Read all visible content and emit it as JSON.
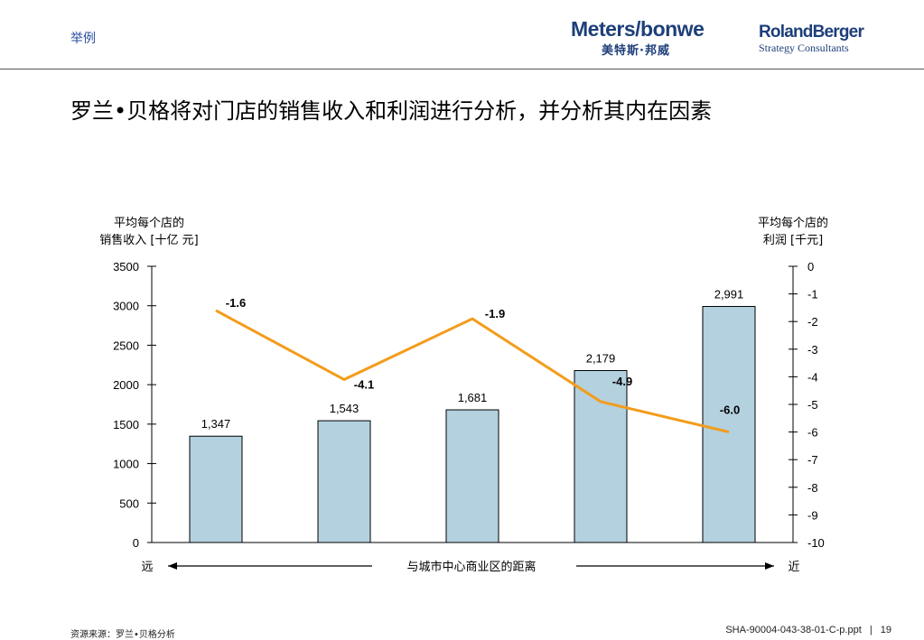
{
  "header": {
    "tag": "举例",
    "logo_meters_word": "Meters/bonwe",
    "logo_meters_sub": "美特斯·邦威",
    "logo_rb_word": "RolandBerger",
    "logo_rb_sub": "Strategy Consultants"
  },
  "title": "罗兰•贝格将对门店的销售收入和利润进行分析，并分析其内在因素",
  "chart_data": {
    "type": "bar",
    "categories": [
      "",
      "",
      "",
      "",
      ""
    ],
    "left_axis_label_line1": "平均每个店的",
    "left_axis_label_line2": "销售收入 [十亿 元]",
    "right_axis_label_line1": "平均每个店的",
    "right_axis_label_line2": "利润 [千元]",
    "ylim_left": [
      0,
      3500
    ],
    "yticks_left": [
      "0",
      "500",
      "1000",
      "1500",
      "2000",
      "2500",
      "3000",
      "3500"
    ],
    "ylim_right": [
      -10,
      0
    ],
    "yticks_right": [
      "0",
      "-1",
      "-2",
      "-3",
      "-4",
      "-5",
      "-6",
      "-7",
      "-8",
      "-9",
      "-10"
    ],
    "bar_series": {
      "values": [
        1347,
        1543,
        1681,
        2179,
        2991
      ],
      "labels": [
        "1,347",
        "1,543",
        "1,681",
        "2,179",
        "2,991"
      ],
      "color": "#b3d1df"
    },
    "line_series": {
      "values": [
        -1.6,
        -4.1,
        -1.9,
        -4.9,
        -6.0
      ],
      "labels": [
        "-1.6",
        "-4.1",
        "-1.9",
        "-4.9",
        "-6.0"
      ],
      "color": "#f39c1b"
    },
    "x_axis_left": "远",
    "x_axis_center": "与城市中心商业区的距离",
    "x_axis_right": "近"
  },
  "footer": {
    "source": "资源来源：罗兰•贝格分析",
    "file": "SHA-90004-043-38-01-C-p.ppt",
    "separator": "|",
    "page": "19"
  }
}
